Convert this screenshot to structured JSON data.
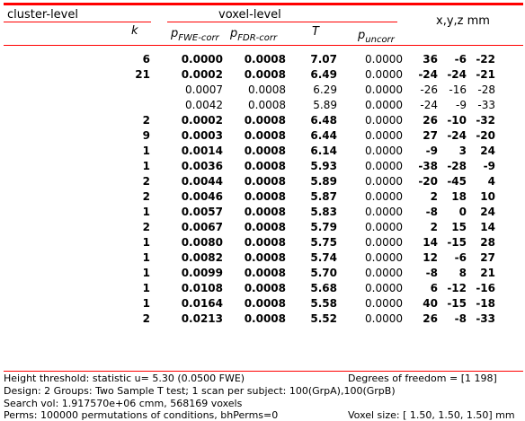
{
  "header": {
    "cluster_level": "cluster-level",
    "voxel_level": "voxel-level",
    "coords": "x,y,z mm",
    "k": "k",
    "p_fwe": "p",
    "p_fwe_sub": "FWE-corr",
    "p_fdr": "p",
    "p_fdr_sub": "FDR-corr",
    "t": "T",
    "p_unc": "p",
    "p_unc_sub": "uncorr"
  },
  "rows": [
    {
      "k": "6",
      "pfwe": "0.0000",
      "pfdr": "0.0008",
      "t": "7.07",
      "punc": "0.0000",
      "x": "36",
      "y": "-6",
      "z": "-22",
      "bold": true
    },
    {
      "k": "21",
      "pfwe": "0.0002",
      "pfdr": "0.0008",
      "t": "6.49",
      "punc": "0.0000",
      "x": "-24",
      "y": "-24",
      "z": "-21",
      "bold": true
    },
    {
      "k": "",
      "pfwe": "0.0007",
      "pfdr": "0.0008",
      "t": "6.29",
      "punc": "0.0000",
      "x": "-26",
      "y": "-16",
      "z": "-28",
      "bold": false
    },
    {
      "k": "",
      "pfwe": "0.0042",
      "pfdr": "0.0008",
      "t": "5.89",
      "punc": "0.0000",
      "x": "-24",
      "y": "-9",
      "z": "-33",
      "bold": false
    },
    {
      "k": "2",
      "pfwe": "0.0002",
      "pfdr": "0.0008",
      "t": "6.48",
      "punc": "0.0000",
      "x": "26",
      "y": "-10",
      "z": "-32",
      "bold": true
    },
    {
      "k": "9",
      "pfwe": "0.0003",
      "pfdr": "0.0008",
      "t": "6.44",
      "punc": "0.0000",
      "x": "27",
      "y": "-24",
      "z": "-20",
      "bold": true
    },
    {
      "k": "1",
      "pfwe": "0.0014",
      "pfdr": "0.0008",
      "t": "6.14",
      "punc": "0.0000",
      "x": "-9",
      "y": "3",
      "z": "24",
      "bold": true
    },
    {
      "k": "1",
      "pfwe": "0.0036",
      "pfdr": "0.0008",
      "t": "5.93",
      "punc": "0.0000",
      "x": "-38",
      "y": "-28",
      "z": "-9",
      "bold": true
    },
    {
      "k": "2",
      "pfwe": "0.0044",
      "pfdr": "0.0008",
      "t": "5.89",
      "punc": "0.0000",
      "x": "-20",
      "y": "-45",
      "z": "4",
      "bold": true
    },
    {
      "k": "2",
      "pfwe": "0.0046",
      "pfdr": "0.0008",
      "t": "5.87",
      "punc": "0.0000",
      "x": "2",
      "y": "18",
      "z": "10",
      "bold": true
    },
    {
      "k": "1",
      "pfwe": "0.0057",
      "pfdr": "0.0008",
      "t": "5.83",
      "punc": "0.0000",
      "x": "-8",
      "y": "0",
      "z": "24",
      "bold": true
    },
    {
      "k": "2",
      "pfwe": "0.0067",
      "pfdr": "0.0008",
      "t": "5.79",
      "punc": "0.0000",
      "x": "2",
      "y": "15",
      "z": "14",
      "bold": true
    },
    {
      "k": "1",
      "pfwe": "0.0080",
      "pfdr": "0.0008",
      "t": "5.75",
      "punc": "0.0000",
      "x": "14",
      "y": "-15",
      "z": "28",
      "bold": true
    },
    {
      "k": "1",
      "pfwe": "0.0082",
      "pfdr": "0.0008",
      "t": "5.74",
      "punc": "0.0000",
      "x": "12",
      "y": "-6",
      "z": "27",
      "bold": true
    },
    {
      "k": "1",
      "pfwe": "0.0099",
      "pfdr": "0.0008",
      "t": "5.70",
      "punc": "0.0000",
      "x": "-8",
      "y": "8",
      "z": "21",
      "bold": true
    },
    {
      "k": "1",
      "pfwe": "0.0108",
      "pfdr": "0.0008",
      "t": "5.68",
      "punc": "0.0000",
      "x": "6",
      "y": "-12",
      "z": "-16",
      "bold": true
    },
    {
      "k": "1",
      "pfwe": "0.0164",
      "pfdr": "0.0008",
      "t": "5.58",
      "punc": "0.0000",
      "x": "40",
      "y": "-15",
      "z": "-18",
      "bold": true
    },
    {
      "k": "2",
      "pfwe": "0.0213",
      "pfdr": "0.0008",
      "t": "5.52",
      "punc": "0.0000",
      "x": "26",
      "y": "-8",
      "z": "-33",
      "bold": true
    }
  ],
  "footer": {
    "threshold": "Height threshold: statistic u=   5.30 (0.0500 FWE)",
    "dof": "Degrees of freedom = [1 198]",
    "design": "Design: 2 Groups: Two Sample T test; 1 scan per subject: 100(GrpA),100(GrpB)",
    "search_vol": "Search vol: 1.917570e+06 cmm, 568169 voxels",
    "perms": "Perms: 100000 permutations of conditions, bhPerms=0",
    "voxel_size": "Voxel size: [ 1.50,  1.50,  1.50] mm"
  },
  "colors": {
    "rule": "#ff0000"
  }
}
